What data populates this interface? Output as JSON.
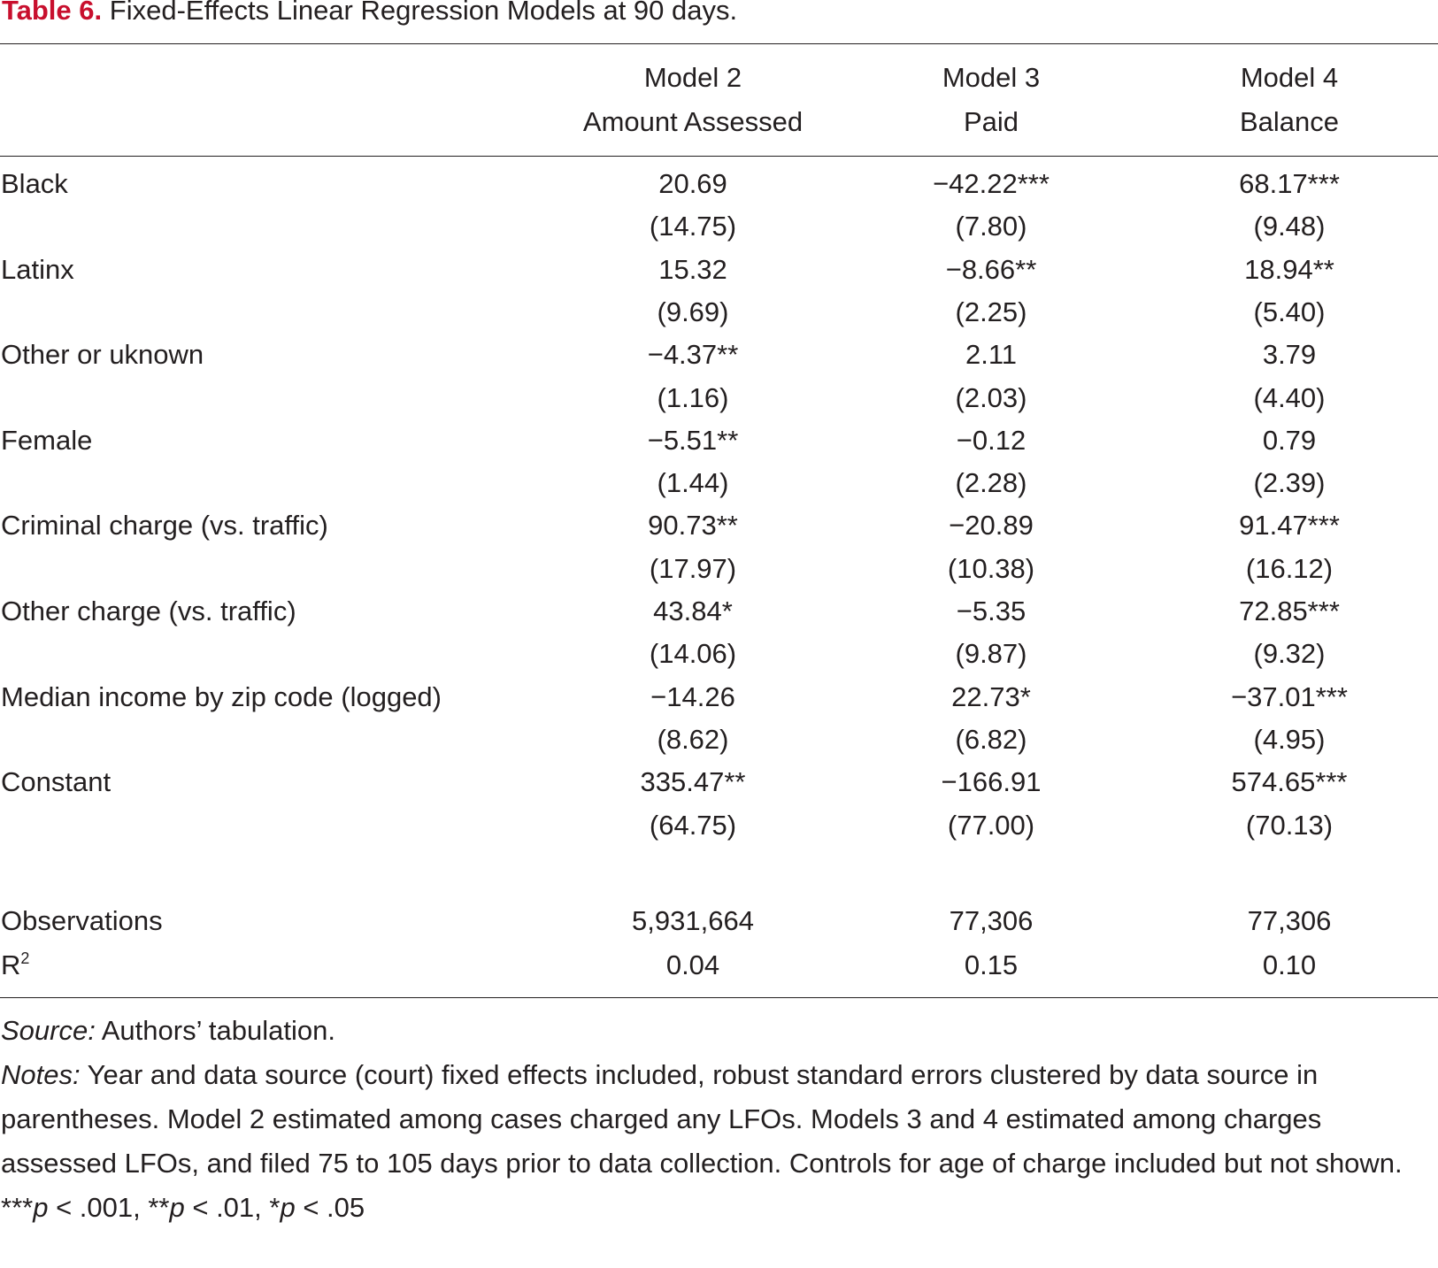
{
  "caption": {
    "label": "Table 6.",
    "title": "Fixed-Effects Linear Regression Models at 90 days."
  },
  "columns": [
    {
      "model": "Model 2",
      "outcome": "Amount Assessed"
    },
    {
      "model": "Model 3",
      "outcome": "Paid"
    },
    {
      "model": "Model 4",
      "outcome": "Balance"
    }
  ],
  "rows": [
    {
      "label": "Black",
      "coef": [
        "20.69",
        "−42.22***",
        "68.17***"
      ],
      "se": [
        "(14.75)",
        "(7.80)",
        "(9.48)"
      ]
    },
    {
      "label": "Latinx",
      "coef": [
        "15.32",
        "−8.66**",
        "18.94**"
      ],
      "se": [
        "(9.69)",
        "(2.25)",
        "(5.40)"
      ]
    },
    {
      "label": "Other or uknown",
      "coef": [
        "−4.37**",
        "2.11",
        "3.79"
      ],
      "se": [
        "(1.16)",
        "(2.03)",
        "(4.40)"
      ]
    },
    {
      "label": "Female",
      "coef": [
        "−5.51**",
        "−0.12",
        "0.79"
      ],
      "se": [
        "(1.44)",
        "(2.28)",
        "(2.39)"
      ]
    },
    {
      "label": "Criminal charge (vs. traffic)",
      "coef": [
        "90.73**",
        "−20.89",
        "91.47***"
      ],
      "se": [
        "(17.97)",
        "(10.38)",
        "(16.12)"
      ]
    },
    {
      "label": "Other charge (vs. traffic)",
      "coef": [
        "43.84*",
        "−5.35",
        "72.85***"
      ],
      "se": [
        "(14.06)",
        "(9.87)",
        "(9.32)"
      ]
    },
    {
      "label": "Median income by zip code (logged)",
      "coef": [
        "−14.26",
        "22.73*",
        "−37.01***"
      ],
      "se": [
        "(8.62)",
        "(6.82)",
        "(4.95)"
      ]
    },
    {
      "label": "Constant",
      "coef": [
        "335.47**",
        "−166.91",
        "574.65***"
      ],
      "se": [
        "(64.75)",
        "(77.00)",
        "(70.13)"
      ]
    }
  ],
  "stats": [
    {
      "label": "Observations",
      "values": [
        "5,931,664",
        "77,306",
        "77,306"
      ]
    },
    {
      "label_main": "R",
      "label_sup": "2",
      "values": [
        "0.04",
        "0.15",
        "0.10"
      ]
    }
  ],
  "notes": {
    "source_label": "Source:",
    "source_text": " Authors’ tabulation.",
    "notes_label": "Notes:",
    "notes_text": " Year and data source (court) fixed effects included, robust standard errors clustered by data source in parentheses. Model 2 estimated among cases charged any LFOs. Models 3 and 4 estimated among charges assessed LFOs, and filed 75 to 105 days prior to data collection. Controls for age of charge included but not shown.",
    "sig": [
      {
        "stars": "***",
        "p": "p",
        "rest": " < .001, "
      },
      {
        "stars": "**",
        "p": "p",
        "rest": " < .01, "
      },
      {
        "stars": "*",
        "p": "p",
        "rest": " < .05"
      }
    ]
  }
}
